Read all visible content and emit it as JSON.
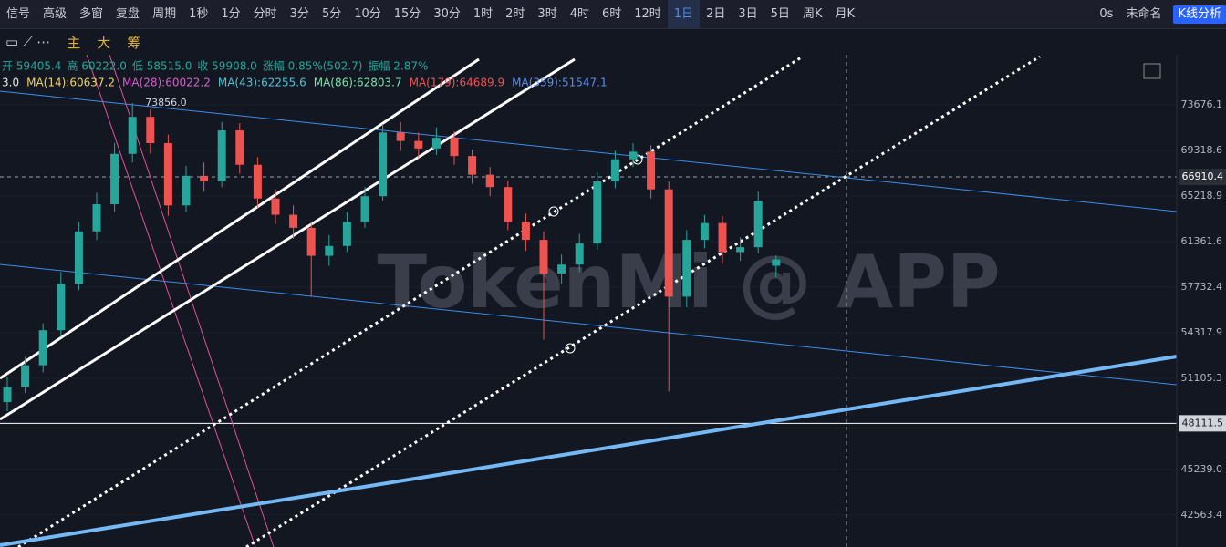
{
  "toolbar": {
    "left": [
      "信号",
      "高级",
      "多窗",
      "复盘",
      "周期"
    ],
    "periods": [
      "1秒",
      "1分",
      "分时",
      "3分",
      "5分",
      "10分",
      "15分",
      "30分",
      "1时",
      "2时",
      "3时",
      "4时",
      "6时",
      "12时",
      "1日",
      "2日",
      "3日",
      "5日",
      "周K",
      "月K"
    ],
    "active_period": 14,
    "delay": "0s",
    "layout_name": "未命名",
    "analysis_button": "K线分析"
  },
  "drawing_bar": {
    "labels": [
      "主",
      "大",
      "筹"
    ]
  },
  "ohlc_info": [
    "开 59405.4",
    "高 60222.0",
    "低 58515.0",
    "收 59908.0",
    "涨幅 0.85%(502.7)",
    "振幅 2.87%"
  ],
  "ma_info": [
    {
      "text": "3.0",
      "color": "#e8e8e8"
    },
    {
      "text": "MA(14):60637.2",
      "color": "#f0d264"
    },
    {
      "text": "MA(28):60022.2",
      "color": "#d660c8"
    },
    {
      "text": "MA(43):62255.6",
      "color": "#4fc3d6"
    },
    {
      "text": "MA(86):62803.7",
      "color": "#7fe0b0"
    },
    {
      "text": "MA(179):64689.9",
      "color": "#ef5350"
    },
    {
      "text": "MA(359):51547.1",
      "color": "#5b8def"
    }
  ],
  "watermark": "TokenMi @ APP",
  "high_label": "73856.0",
  "chart_data": {
    "type": "candlestick",
    "log": true,
    "ylim": [
      40774,
      78790
    ],
    "yticks": [
      {
        "value": 73676.1,
        "label": "73676.1"
      },
      {
        "value": 69318.6,
        "label": "69318.6"
      },
      {
        "value": 65218.9,
        "label": "65218.9"
      },
      {
        "value": 61361.6,
        "label": "61361.6"
      },
      {
        "value": 57732.4,
        "label": "57732.4"
      },
      {
        "value": 54317.9,
        "label": "54317.9"
      },
      {
        "value": 51105.3,
        "label": "51105.3"
      },
      {
        "value": 45239,
        "label": "45239.0"
      },
      {
        "value": 42563.4,
        "label": "42563.4"
      }
    ],
    "price_tags": [
      {
        "value": 66910.4,
        "label": "66910.4"
      },
      {
        "value": 48111.5,
        "label": "48111.5"
      }
    ],
    "up_color": "#26a69a",
    "down_color": "#ef5350",
    "candles": [
      [
        49500,
        51200,
        48900,
        50500
      ],
      [
        50500,
        52600,
        50100,
        52000
      ],
      [
        52000,
        55000,
        51500,
        54500
      ],
      [
        54500,
        58900,
        54000,
        58000
      ],
      [
        58000,
        63000,
        57500,
        62200
      ],
      [
        62200,
        65500,
        61500,
        64500
      ],
      [
        64500,
        70000,
        63800,
        69000
      ],
      [
        69000,
        73856,
        68200,
        72500
      ],
      [
        72500,
        73200,
        69000,
        70000
      ],
      [
        70000,
        70800,
        63500,
        64400
      ],
      [
        64400,
        67900,
        63800,
        67000
      ],
      [
        67000,
        68200,
        65600,
        66500
      ],
      [
        66500,
        72000,
        66000,
        71200
      ],
      [
        71200,
        71900,
        67200,
        68000
      ],
      [
        68000,
        68700,
        64200,
        65000
      ],
      [
        65000,
        65800,
        62800,
        63600
      ],
      [
        63600,
        64400,
        61600,
        62500
      ],
      [
        62500,
        63000,
        57000,
        60200
      ],
      [
        60200,
        61900,
        59400,
        61000
      ],
      [
        61000,
        63800,
        60500,
        63000
      ],
      [
        63000,
        66000,
        62500,
        65200
      ],
      [
        65200,
        71800,
        64800,
        71000
      ],
      [
        71000,
        72000,
        69300,
        70200
      ],
      [
        70200,
        71000,
        68600,
        69500
      ],
      [
        69500,
        71500,
        68900,
        70500
      ],
      [
        70500,
        71100,
        68000,
        68800
      ],
      [
        68800,
        69400,
        66300,
        67100
      ],
      [
        67100,
        67800,
        65200,
        66000
      ],
      [
        66000,
        66600,
        62300,
        63000
      ],
      [
        63000,
        63700,
        60600,
        61500
      ],
      [
        61500,
        62200,
        53800,
        58800
      ],
      [
        58800,
        60300,
        58000,
        59500
      ],
      [
        59500,
        62000,
        58900,
        61200
      ],
      [
        61200,
        67300,
        60700,
        66500
      ],
      [
        66500,
        69300,
        65900,
        68500
      ],
      [
        68500,
        70000,
        67800,
        69200
      ],
      [
        69200,
        69800,
        65000,
        65800
      ],
      [
        65800,
        66500,
        50200,
        57000
      ],
      [
        57000,
        62300,
        56200,
        61500
      ],
      [
        61500,
        63600,
        60800,
        62900
      ],
      [
        62900,
        63500,
        59600,
        60500
      ],
      [
        60500,
        61700,
        59800,
        60900
      ],
      [
        60900,
        65600,
        60400,
        64800
      ],
      [
        59405.4,
        60222,
        58515,
        59908
      ]
    ]
  }
}
